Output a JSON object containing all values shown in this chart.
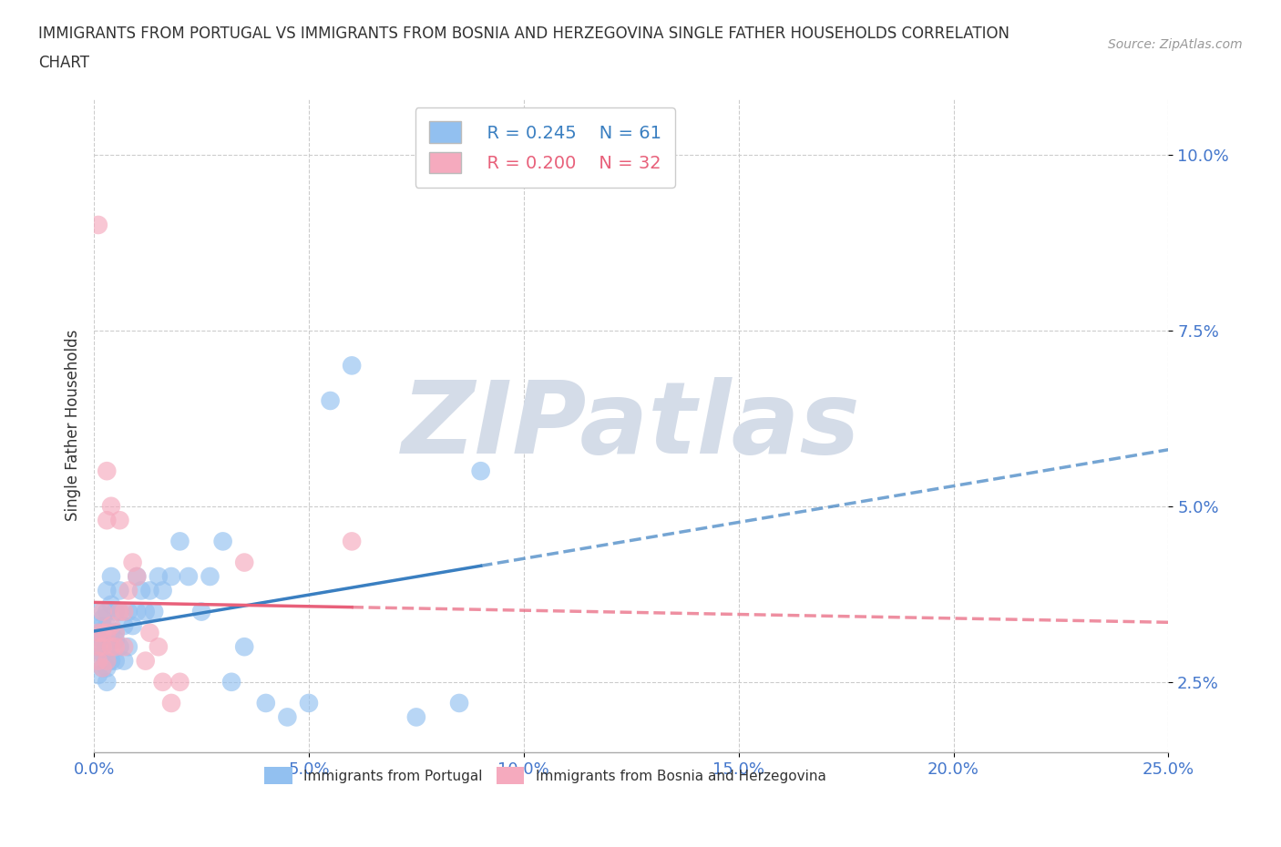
{
  "title_line1": "IMMIGRANTS FROM PORTUGAL VS IMMIGRANTS FROM BOSNIA AND HERZEGOVINA SINGLE FATHER HOUSEHOLDS CORRELATION",
  "title_line2": "CHART",
  "source": "Source: ZipAtlas.com",
  "ylabel": "Single Father Households",
  "watermark": "ZIPatlas",
  "xlim": [
    0.0,
    0.25
  ],
  "ylim": [
    0.015,
    0.108
  ],
  "xticks": [
    0.0,
    0.05,
    0.1,
    0.15,
    0.2,
    0.25
  ],
  "yticks": [
    0.025,
    0.05,
    0.075,
    0.1
  ],
  "xtick_labels": [
    "0.0%",
    "5.0%",
    "10.0%",
    "15.0%",
    "20.0%",
    "25.0%"
  ],
  "ytick_labels": [
    "2.5%",
    "5.0%",
    "7.5%",
    "10.0%"
  ],
  "color_portugal": "#92c0f0",
  "color_bosnia": "#f5aabe",
  "line_color_portugal": "#3a7fc1",
  "line_color_bosnia": "#e8607a",
  "R_portugal": 0.245,
  "N_portugal": 61,
  "R_bosnia": 0.2,
  "N_bosnia": 32,
  "portugal_x": [
    0.001,
    0.001,
    0.001,
    0.001,
    0.001,
    0.002,
    0.002,
    0.002,
    0.002,
    0.002,
    0.002,
    0.002,
    0.003,
    0.003,
    0.003,
    0.003,
    0.003,
    0.003,
    0.003,
    0.003,
    0.004,
    0.004,
    0.004,
    0.004,
    0.004,
    0.005,
    0.005,
    0.005,
    0.005,
    0.006,
    0.006,
    0.006,
    0.007,
    0.007,
    0.008,
    0.008,
    0.009,
    0.01,
    0.01,
    0.011,
    0.012,
    0.013,
    0.014,
    0.015,
    0.016,
    0.018,
    0.02,
    0.022,
    0.025,
    0.027,
    0.03,
    0.032,
    0.035,
    0.04,
    0.045,
    0.05,
    0.055,
    0.06,
    0.075,
    0.085,
    0.09
  ],
  "portugal_y": [
    0.03,
    0.028,
    0.032,
    0.026,
    0.035,
    0.029,
    0.031,
    0.033,
    0.027,
    0.034,
    0.032,
    0.03,
    0.028,
    0.03,
    0.032,
    0.025,
    0.027,
    0.035,
    0.038,
    0.033,
    0.028,
    0.032,
    0.036,
    0.03,
    0.04,
    0.031,
    0.035,
    0.028,
    0.032,
    0.03,
    0.035,
    0.038,
    0.028,
    0.033,
    0.03,
    0.035,
    0.033,
    0.035,
    0.04,
    0.038,
    0.035,
    0.038,
    0.035,
    0.04,
    0.038,
    0.04,
    0.045,
    0.04,
    0.035,
    0.04,
    0.045,
    0.025,
    0.03,
    0.022,
    0.02,
    0.022,
    0.065,
    0.07,
    0.02,
    0.022,
    0.055
  ],
  "bosnia_x": [
    0.001,
    0.001,
    0.001,
    0.001,
    0.002,
    0.002,
    0.002,
    0.002,
    0.003,
    0.003,
    0.003,
    0.003,
    0.004,
    0.004,
    0.004,
    0.005,
    0.005,
    0.006,
    0.006,
    0.007,
    0.007,
    0.008,
    0.009,
    0.01,
    0.012,
    0.013,
    0.015,
    0.016,
    0.018,
    0.02,
    0.035,
    0.06
  ],
  "bosnia_y": [
    0.03,
    0.028,
    0.032,
    0.09,
    0.03,
    0.035,
    0.027,
    0.032,
    0.055,
    0.028,
    0.032,
    0.048,
    0.03,
    0.033,
    0.05,
    0.03,
    0.032,
    0.035,
    0.048,
    0.03,
    0.035,
    0.038,
    0.042,
    0.04,
    0.028,
    0.032,
    0.03,
    0.025,
    0.022,
    0.025,
    0.042,
    0.045
  ],
  "bg_color": "#ffffff",
  "grid_color": "#cccccc",
  "watermark_color": "#d4dce8",
  "tick_color": "#4477cc"
}
